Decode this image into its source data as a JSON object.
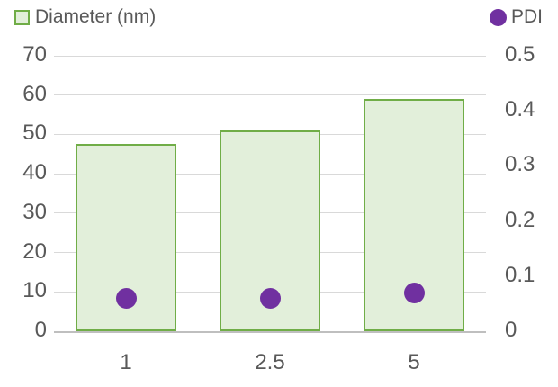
{
  "colors": {
    "background": "#FFFFFF",
    "bar_fill": "#E2EFDA",
    "bar_border": "#70AD47",
    "dot": "#7030A0",
    "text": "#595959",
    "gridline": "#D9D9D9",
    "axis_line": "#BFBFBF"
  },
  "chart_data": {
    "type": "combo-bar-scatter",
    "title": "",
    "categories": [
      "1",
      "2.5",
      "5"
    ],
    "series": [
      {
        "name": "Diameter (nm)",
        "type": "bar",
        "axis": "left",
        "values": [
          47.5,
          51,
          59
        ]
      },
      {
        "name": "PDI",
        "type": "scatter",
        "axis": "right",
        "values": [
          0.06,
          0.06,
          0.07
        ]
      }
    ],
    "left_axis": {
      "label": "",
      "min": 0,
      "max": 70,
      "step": 10,
      "tick_labels": [
        "0",
        "10",
        "20",
        "30",
        "40",
        "50",
        "60",
        "70"
      ]
    },
    "right_axis": {
      "label": "",
      "min": 0,
      "max": 0.5,
      "step": 0.1,
      "tick_labels": [
        "0",
        "0.1",
        "0.2",
        "0.3",
        "0.4",
        "0.5"
      ]
    },
    "grid": true,
    "legend_position": "top"
  }
}
